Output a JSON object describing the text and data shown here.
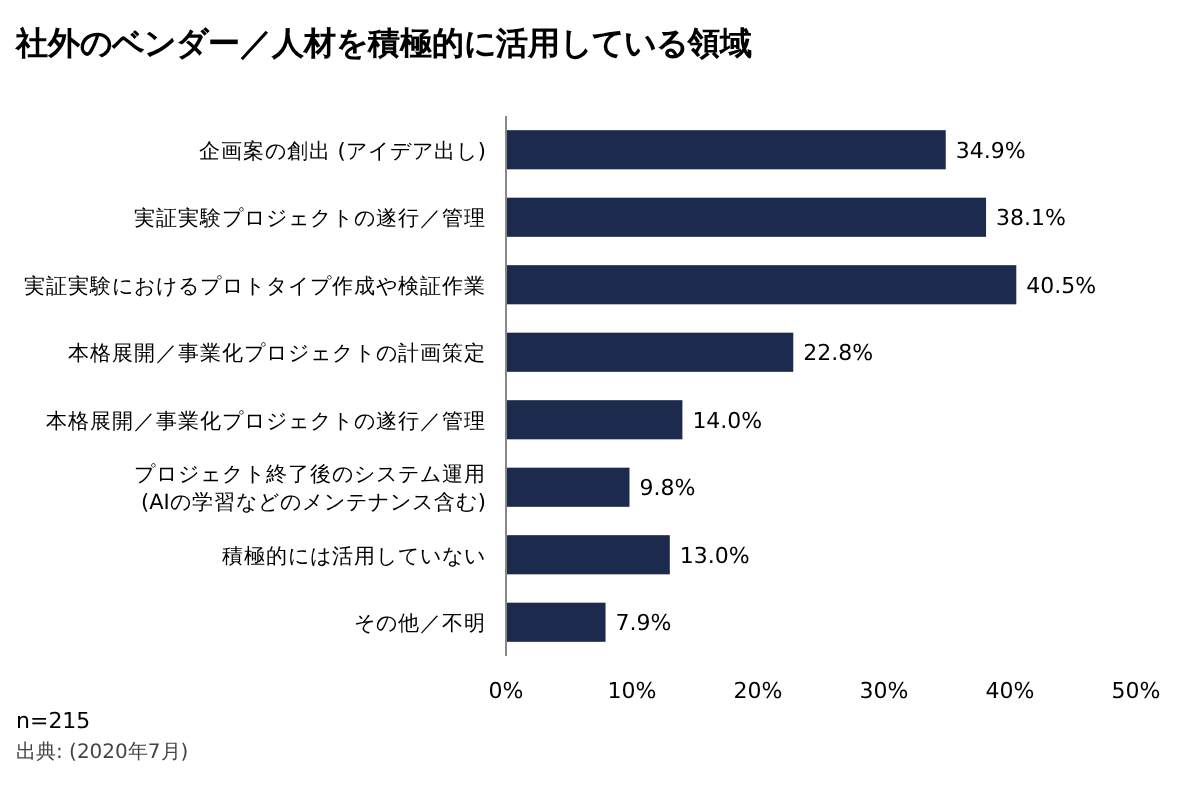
{
  "chart_data": {
    "type": "bar",
    "orientation": "horizontal",
    "title": "社外のベンダー／人材を積極的に活用している領域",
    "categories": [
      "企画案の創出 (アイデア出し)",
      "実証実験プロジェクトの遂行／管理",
      "実証実験におけるプロトタイプ作成や検証作業",
      "本格展開／事業化プロジェクトの計画策定",
      "本格展開／事業化プロジェクトの遂行／管理",
      "プロジェクト終了後のシステム運用\n(AIの学習などのメンテナンス含む)",
      "積極的には活用していない",
      "その他／不明"
    ],
    "values": [
      34.9,
      38.1,
      40.5,
      22.8,
      14.0,
      9.8,
      13.0,
      7.9
    ],
    "value_labels": [
      "34.9%",
      "38.1%",
      "40.5%",
      "22.8%",
      "14.0%",
      "9.8%",
      "13.0%",
      "7.9%"
    ],
    "color": "#1c2b4d",
    "xlim": [
      0,
      50
    ],
    "xticks": [
      {
        "value": 0,
        "label": "0%"
      },
      {
        "value": 10,
        "label": "10%"
      },
      {
        "value": 20,
        "label": "20%"
      },
      {
        "value": 30,
        "label": "30%"
      },
      {
        "value": 40,
        "label": "40%"
      },
      {
        "value": 50,
        "label": "50%"
      }
    ],
    "grid": false,
    "annotations": [
      "n=215",
      "出典: (2020年7月)"
    ]
  }
}
